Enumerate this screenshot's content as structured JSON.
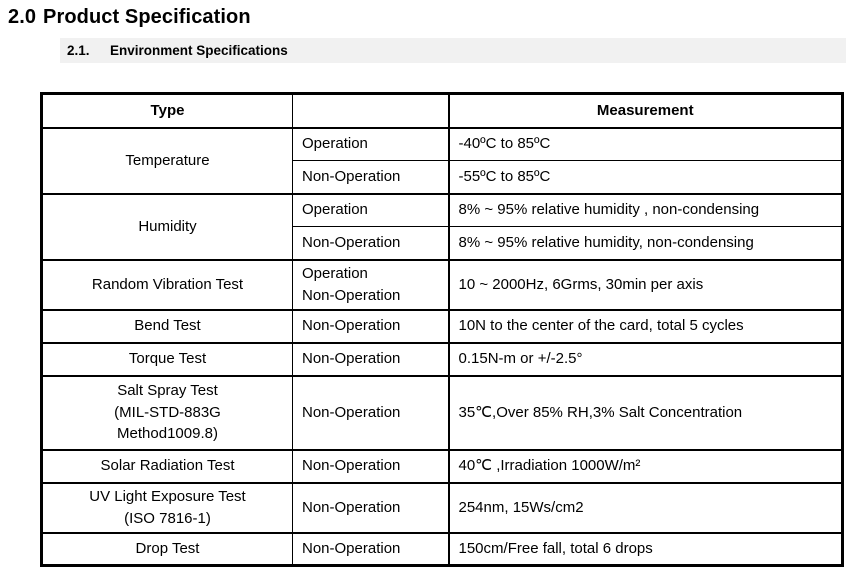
{
  "document": {
    "section": {
      "number": "2.0",
      "title": "Product Specification"
    },
    "subsection": {
      "number": "2.1.",
      "title": "Environment Specifications"
    }
  },
  "colors": {
    "text": "#000000",
    "table_border": "#000000",
    "subsection_band_bg": "#f1f1f1"
  },
  "table": {
    "headers": {
      "type": "Type",
      "mode": "",
      "measurement": "Measurement"
    },
    "groups": [
      {
        "type": "Temperature",
        "rows": [
          {
            "mode": "Operation",
            "measurement": "-40ºC to 85ºC"
          },
          {
            "mode": "Non-Operation",
            "measurement": "-55ºC to 85ºC"
          }
        ]
      },
      {
        "type": "Humidity",
        "rows": [
          {
            "mode": "Operation",
            "measurement": "8% ~ 95% relative humidity , non-condensing"
          },
          {
            "mode": "Non-Operation",
            "measurement": "8% ~ 95% relative humidity, non-condensing"
          }
        ]
      },
      {
        "type": "Random Vibration Test",
        "rows": [
          {
            "mode": "Operation\nNon-Operation",
            "measurement": "10 ~ 2000Hz, 6Grms, 30min per axis"
          }
        ]
      },
      {
        "type": "Bend Test",
        "rows": [
          {
            "mode": "Non-Operation",
            "measurement": "10N to the center of the card, total 5 cycles"
          }
        ]
      },
      {
        "type": "Torque Test",
        "rows": [
          {
            "mode": "Non-Operation",
            "measurement": "0.15N-m or +/-2.5°"
          }
        ]
      },
      {
        "type": "Salt Spray Test\n(MIL-STD-883G\nMethod1009.8)",
        "rows": [
          {
            "mode": "Non-Operation",
            "measurement": "35℃,Over 85% RH,3% Salt Concentration"
          }
        ]
      },
      {
        "type": "Solar Radiation Test",
        "rows": [
          {
            "mode": "Non-Operation",
            "measurement": "40℃ ,Irradiation 1000W/m²"
          }
        ]
      },
      {
        "type": "UV Light Exposure Test\n(ISO 7816-1)",
        "rows": [
          {
            "mode": "Non-Operation",
            "measurement": "254nm, 15Ws/cm2"
          }
        ]
      },
      {
        "type": "Drop Test",
        "rows": [
          {
            "mode": "Non-Operation",
            "measurement": "150cm/Free fall, total 6 drops"
          }
        ]
      }
    ]
  }
}
